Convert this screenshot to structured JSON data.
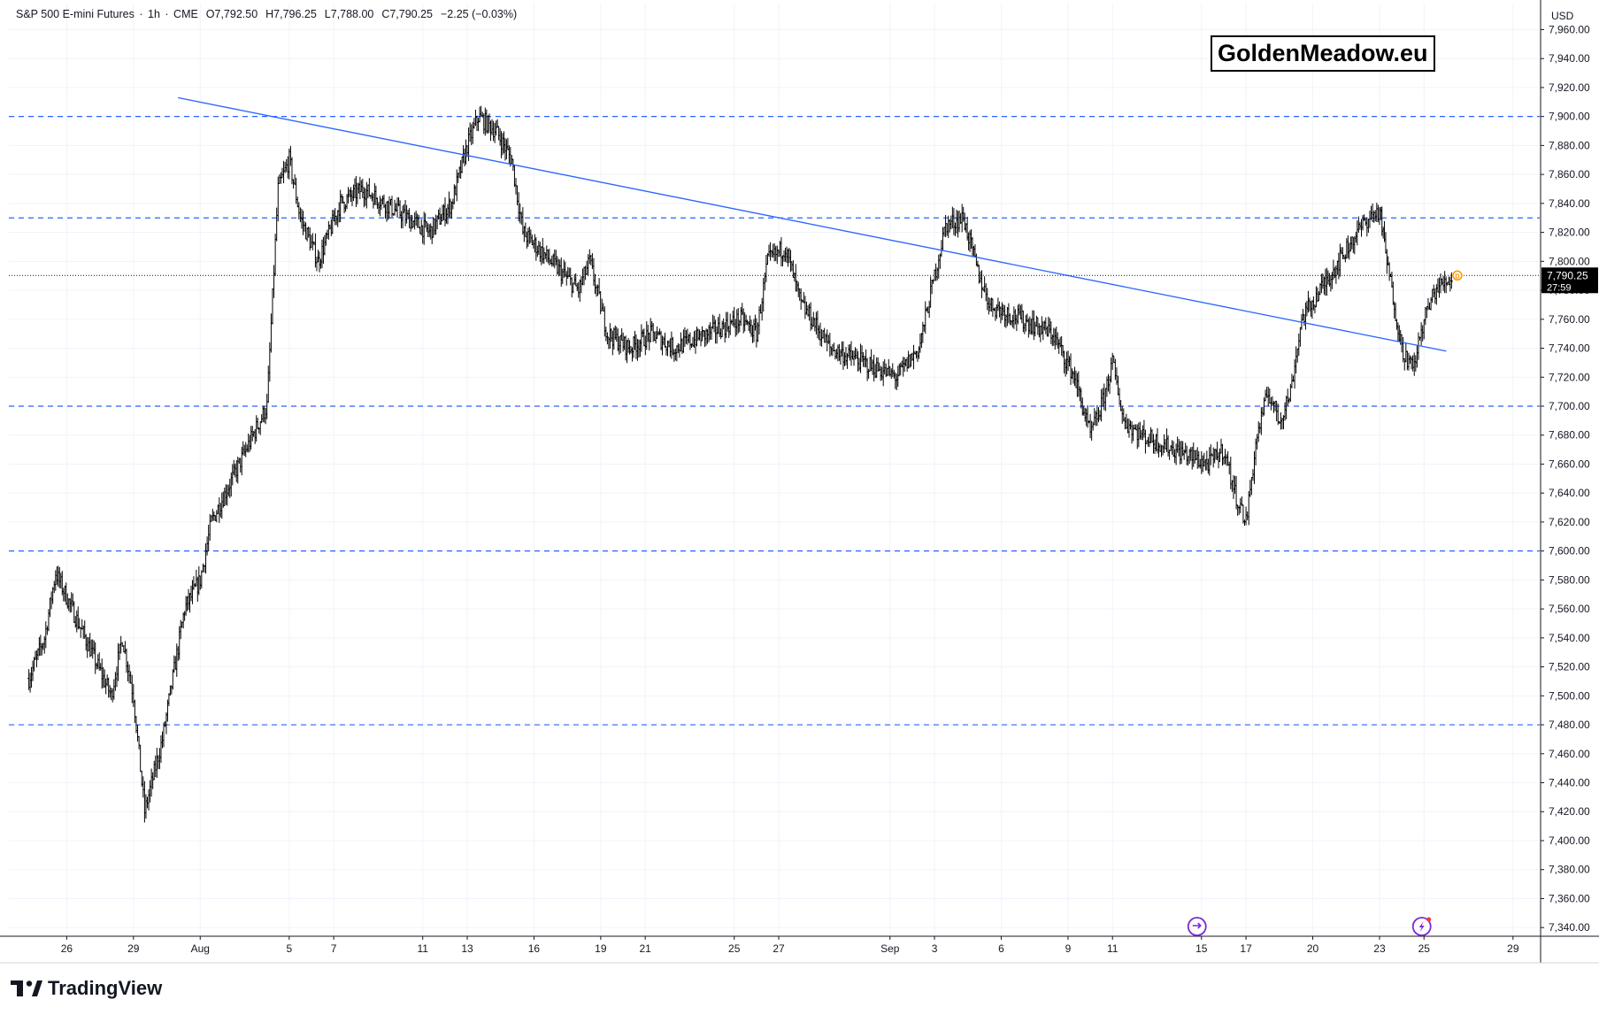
{
  "header": {
    "symbol": "S&P 500 E-mini Futures",
    "interval": "1h",
    "exchange": "CME",
    "open": "O7,792.50",
    "high": "H7,796.25",
    "low": "L7,788.00",
    "close": "C7,790.25",
    "change": "−2.25 (−0.03%)"
  },
  "watermark": "GoldenMeadow.eu",
  "brand": "TradingView",
  "currency": "USD",
  "last_price_label": {
    "price": "7,790.25",
    "countdown": "27:59"
  },
  "colors": {
    "candle": "#000000",
    "trendline": "#2962ff",
    "level_line": "#2962ff",
    "last_price_bg": "#000000",
    "event_icon": "#7b2ad8",
    "dividend_marker": "#ff9800"
  },
  "icons": [
    "event-calendar-icon",
    "lightning-event-icon",
    "dividend-marker-icon",
    "tradingview-logo-icon"
  ],
  "chart_data": {
    "type": "candlestick",
    "interval": "1h",
    "x_ticks": [
      "26",
      "29",
      "Aug",
      "5",
      "7",
      "11",
      "13",
      "16",
      "19",
      "21",
      "25",
      "27",
      "Sep",
      "3",
      "6",
      "9",
      "11",
      "15",
      "17",
      "20",
      "23",
      "25",
      "29"
    ],
    "y_ticks": [
      "7,960.00",
      "7,940.00",
      "7,920.00",
      "7,900.00",
      "7,880.00",
      "7,860.00",
      "7,840.00",
      "7,820.00",
      "7,800.00",
      "7,780.00",
      "7,760.00",
      "7,740.00",
      "7,720.00",
      "7,700.00",
      "7,680.00",
      "7,660.00",
      "7,640.00",
      "7,620.00",
      "7,600.00",
      "7,580.00",
      "7,560.00",
      "7,540.00",
      "7,520.00",
      "7,500.00",
      "7,480.00",
      "7,460.00",
      "7,440.00",
      "7,420.00",
      "7,400.00",
      "7,380.00",
      "7,360.00",
      "7,340.00"
    ],
    "y_range": [
      7334,
      7978
    ],
    "horizontal_levels": [
      7900,
      7830,
      7700,
      7600,
      7480
    ],
    "trendline": {
      "from": [
        "Jul 31",
        7913
      ],
      "to": [
        "Sep 26",
        7738
      ]
    },
    "last_price": 7790.25,
    "approx_close_path": [
      [
        "Jul 24",
        7512
      ],
      [
        "Jul 25",
        7540
      ],
      [
        "Jul 25",
        7585
      ],
      [
        "Jul 28",
        7500
      ],
      [
        "Jul 28",
        7540
      ],
      [
        "Jul 29",
        7500
      ],
      [
        "Jul 29",
        7420
      ],
      [
        "Jul 30",
        7470
      ],
      [
        "Jul 31",
        7560
      ],
      [
        "Aug 1",
        7580
      ],
      [
        "Aug 1",
        7620
      ],
      [
        "Aug 4",
        7700
      ],
      [
        "Aug 4",
        7850
      ],
      [
        "Aug 5",
        7870
      ],
      [
        "Aug 5",
        7830
      ],
      [
        "Aug 6",
        7800
      ],
      [
        "Aug 7",
        7840
      ],
      [
        "Aug 8",
        7850
      ],
      [
        "Aug 11",
        7820
      ],
      [
        "Aug 12",
        7840
      ],
      [
        "Aug 13",
        7880
      ],
      [
        "Aug 13",
        7900
      ],
      [
        "Aug 14",
        7890
      ],
      [
        "Aug 15",
        7870
      ],
      [
        "Aug 15",
        7820
      ],
      [
        "Aug 18",
        7780
      ],
      [
        "Aug 18",
        7800
      ],
      [
        "Aug 19",
        7750
      ],
      [
        "Aug 20",
        7740
      ],
      [
        "Aug 21",
        7750
      ],
      [
        "Aug 22",
        7740
      ],
      [
        "Aug 25",
        7760
      ],
      [
        "Aug 26",
        7750
      ],
      [
        "Aug 26",
        7800
      ],
      [
        "Aug 27",
        7810
      ],
      [
        "Aug 28",
        7770
      ],
      [
        "Aug 28",
        7760
      ],
      [
        "Aug 29",
        7740
      ],
      [
        "Sep 1",
        7720
      ],
      [
        "Sep 2",
        7740
      ],
      [
        "Sep 3",
        7790
      ],
      [
        "Sep 3",
        7825
      ],
      [
        "Sep 4",
        7830
      ],
      [
        "Sep 5",
        7790
      ],
      [
        "Sep 5",
        7770
      ],
      [
        "Sep 8",
        7750
      ],
      [
        "Sep 9",
        7720
      ],
      [
        "Sep 10",
        7680
      ],
      [
        "Sep 10",
        7700
      ],
      [
        "Sep 11",
        7730
      ],
      [
        "Sep 11",
        7690
      ],
      [
        "Sep 12",
        7680
      ],
      [
        "Sep 15",
        7660
      ],
      [
        "Sep 16",
        7670
      ],
      [
        "Sep 16",
        7640
      ],
      [
        "Sep 17",
        7620
      ],
      [
        "Sep 17",
        7680
      ],
      [
        "Sep 18",
        7710
      ],
      [
        "Sep 18",
        7690
      ],
      [
        "Sep 19",
        7710
      ],
      [
        "Sep 19",
        7760
      ],
      [
        "Sep 22",
        7820
      ],
      [
        "Sep 22",
        7830
      ],
      [
        "Sep 23",
        7835
      ],
      [
        "Sep 23",
        7800
      ],
      [
        "Sep 23",
        7770
      ],
      [
        "Sep 24",
        7740
      ],
      [
        "Sep 24",
        7725
      ],
      [
        "Sep 25",
        7760
      ],
      [
        "Sep 25",
        7780
      ],
      [
        "Sep 26",
        7790
      ]
    ]
  }
}
